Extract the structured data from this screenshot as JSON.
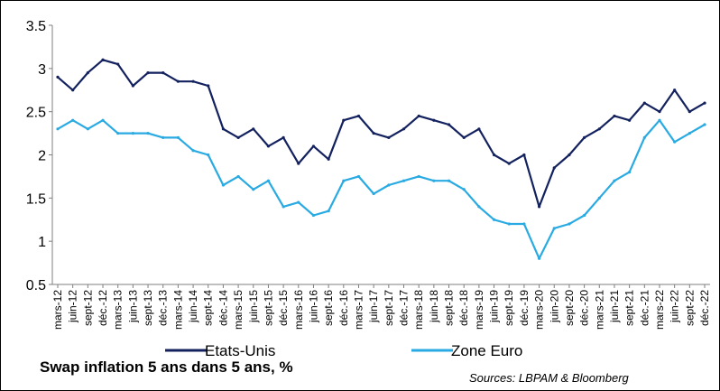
{
  "title": "Swap inflation 5 ans dans 5 ans, %",
  "source": "Sources: LBPAM & Bloomberg",
  "chart_data": {
    "type": "line",
    "ylim": [
      0.5,
      3.5
    ],
    "yticks": [
      "0.5",
      "1",
      "1.5",
      "2",
      "2.5",
      "3",
      "3.5"
    ],
    "yticks_values": [
      0.5,
      1,
      1.5,
      2,
      2.5,
      3,
      3.5
    ],
    "grid": "none",
    "legend_position": "bottom",
    "x_tick_labels": [
      "mars-12",
      "juin-12",
      "sept-12",
      "déc.-12",
      "mars-13",
      "juin-13",
      "sept-13",
      "déc.-13",
      "mars-14",
      "juin-14",
      "sept-14",
      "déc.-14",
      "mars-15",
      "juin-15",
      "sept-15",
      "déc.-15",
      "mars-16",
      "juin-16",
      "sept-16",
      "déc.-16",
      "mars-17",
      "juin-17",
      "sept-17",
      "déc.-17",
      "mars-18",
      "juin-18",
      "sept-18",
      "déc.-18",
      "mars-19",
      "juin-19",
      "sept-19",
      "déc.-19",
      "mars-20",
      "juin-20",
      "sept-20",
      "déc.-20",
      "mars-21",
      "juin-21",
      "sept-21",
      "déc.-21",
      "mars-22",
      "juin-22",
      "sept-22",
      "déc.-22"
    ],
    "series": [
      {
        "name": "Etats-Unis",
        "color": "#13215e",
        "values": [
          2.9,
          2.75,
          2.95,
          3.1,
          3.05,
          2.8,
          2.95,
          2.95,
          2.85,
          2.85,
          2.8,
          2.3,
          2.2,
          2.3,
          2.1,
          2.2,
          1.9,
          2.1,
          1.95,
          2.4,
          2.45,
          2.25,
          2.2,
          2.3,
          2.45,
          2.4,
          2.35,
          2.2,
          2.3,
          2.0,
          1.9,
          2.0,
          1.4,
          1.85,
          2.0,
          2.2,
          2.3,
          2.45,
          2.4,
          2.6,
          2.5,
          2.75,
          2.5,
          2.6
        ]
      },
      {
        "name": "Zone Euro",
        "color": "#29aae2",
        "values": [
          2.3,
          2.4,
          2.3,
          2.4,
          2.25,
          2.25,
          2.25,
          2.2,
          2.2,
          2.05,
          2.0,
          1.65,
          1.75,
          1.6,
          1.7,
          1.4,
          1.45,
          1.3,
          1.35,
          1.7,
          1.75,
          1.55,
          1.65,
          1.7,
          1.75,
          1.7,
          1.7,
          1.6,
          1.4,
          1.25,
          1.2,
          1.2,
          0.8,
          1.15,
          1.2,
          1.3,
          1.5,
          1.7,
          1.8,
          2.2,
          2.4,
          2.15,
          2.25,
          2.35
        ]
      }
    ]
  }
}
